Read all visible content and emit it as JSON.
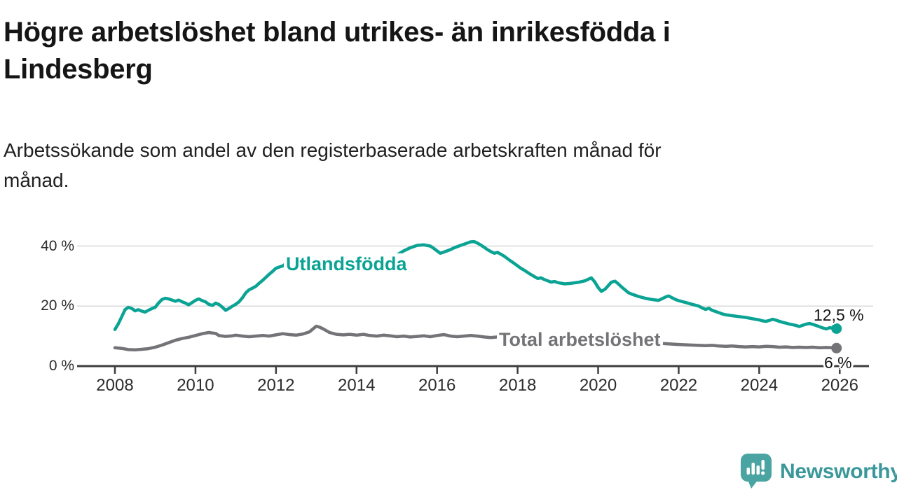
{
  "header": {
    "title_line1": "Högre arbetslöshet bland utrikes- än inrikesfödda i",
    "title_line2": "Lindesberg",
    "subtitle_line1": "Arbetssökande som andel av den registerbaserade arbetskraften månad för",
    "subtitle_line2": "månad."
  },
  "chart_data": {
    "type": "line",
    "unit": "%",
    "grid": "horizontal",
    "legend": "inline-labels",
    "y_axis": {
      "range": [
        0,
        43
      ],
      "ticks": [
        {
          "value": 0,
          "label": "0 %"
        },
        {
          "value": 20,
          "label": "20 %"
        },
        {
          "value": 40,
          "label": "40 %"
        }
      ]
    },
    "x_axis": {
      "range": [
        2007.05,
        2026.8
      ],
      "ticks": [
        2008,
        2010,
        2012,
        2014,
        2016,
        2018,
        2020,
        2022,
        2024,
        2026
      ]
    },
    "series": [
      {
        "name": "Utlandsfödda",
        "color": "#0aa394",
        "end_label": "12,5 %",
        "end_value": 12.5,
        "points": [
          [
            2008.0,
            12.2
          ],
          [
            2008.08,
            14.0
          ],
          [
            2008.17,
            16.5
          ],
          [
            2008.25,
            18.8
          ],
          [
            2008.33,
            19.6
          ],
          [
            2008.42,
            19.2
          ],
          [
            2008.5,
            18.4
          ],
          [
            2008.58,
            18.8
          ],
          [
            2008.67,
            18.3
          ],
          [
            2008.75,
            18.0
          ],
          [
            2008.83,
            18.6
          ],
          [
            2008.92,
            19.2
          ],
          [
            2009.0,
            19.6
          ],
          [
            2009.08,
            21.0
          ],
          [
            2009.17,
            22.2
          ],
          [
            2009.25,
            22.6
          ],
          [
            2009.33,
            22.4
          ],
          [
            2009.42,
            22.0
          ],
          [
            2009.5,
            21.6
          ],
          [
            2009.58,
            22.0
          ],
          [
            2009.67,
            21.4
          ],
          [
            2009.75,
            21.0
          ],
          [
            2009.83,
            20.4
          ],
          [
            2009.92,
            21.2
          ],
          [
            2010.0,
            21.9
          ],
          [
            2010.08,
            22.4
          ],
          [
            2010.17,
            21.8
          ],
          [
            2010.25,
            21.4
          ],
          [
            2010.33,
            20.6
          ],
          [
            2010.42,
            20.2
          ],
          [
            2010.5,
            21.0
          ],
          [
            2010.58,
            20.6
          ],
          [
            2010.67,
            19.6
          ],
          [
            2010.75,
            18.6
          ],
          [
            2010.83,
            19.2
          ],
          [
            2010.92,
            20.0
          ],
          [
            2011.0,
            20.6
          ],
          [
            2011.08,
            21.4
          ],
          [
            2011.17,
            22.8
          ],
          [
            2011.25,
            24.4
          ],
          [
            2011.33,
            25.4
          ],
          [
            2011.42,
            26.0
          ],
          [
            2011.5,
            26.6
          ],
          [
            2011.58,
            27.6
          ],
          [
            2011.67,
            28.6
          ],
          [
            2011.75,
            29.6
          ],
          [
            2011.83,
            30.6
          ],
          [
            2011.92,
            31.6
          ],
          [
            2012.0,
            32.6
          ],
          [
            2012.08,
            33.0
          ],
          [
            2012.17,
            33.4
          ],
          [
            2012.25,
            34.2
          ],
          [
            2012.33,
            33.6
          ],
          [
            2012.42,
            33.0
          ],
          [
            2012.5,
            32.8
          ],
          [
            2012.58,
            32.2
          ],
          [
            2012.67,
            32.0
          ],
          [
            2012.83,
            31.8
          ],
          [
            2013.0,
            32.0
          ],
          [
            2013.25,
            32.4
          ],
          [
            2013.5,
            32.0
          ],
          [
            2013.75,
            32.6
          ],
          [
            2014.0,
            33.0
          ],
          [
            2014.25,
            33.6
          ],
          [
            2014.5,
            34.4
          ],
          [
            2014.75,
            35.6
          ],
          [
            2015.0,
            37.0
          ],
          [
            2015.17,
            38.4
          ],
          [
            2015.33,
            39.4
          ],
          [
            2015.5,
            40.2
          ],
          [
            2015.67,
            40.4
          ],
          [
            2015.83,
            40.0
          ],
          [
            2015.92,
            39.2
          ],
          [
            2016.0,
            38.4
          ],
          [
            2016.08,
            37.6
          ],
          [
            2016.17,
            38.0
          ],
          [
            2016.25,
            38.4
          ],
          [
            2016.33,
            38.8
          ],
          [
            2016.42,
            39.4
          ],
          [
            2016.5,
            39.8
          ],
          [
            2016.58,
            40.2
          ],
          [
            2016.67,
            40.6
          ],
          [
            2016.75,
            41.0
          ],
          [
            2016.83,
            41.4
          ],
          [
            2016.92,
            41.5
          ],
          [
            2017.0,
            41.0
          ],
          [
            2017.08,
            40.4
          ],
          [
            2017.17,
            39.6
          ],
          [
            2017.25,
            38.8
          ],
          [
            2017.33,
            38.2
          ],
          [
            2017.42,
            37.6
          ],
          [
            2017.5,
            37.9
          ],
          [
            2017.58,
            37.3
          ],
          [
            2017.67,
            36.6
          ],
          [
            2017.75,
            35.8
          ],
          [
            2017.83,
            35.0
          ],
          [
            2017.92,
            34.2
          ],
          [
            2018.0,
            33.4
          ],
          [
            2018.08,
            32.6
          ],
          [
            2018.17,
            31.9
          ],
          [
            2018.25,
            31.2
          ],
          [
            2018.33,
            30.5
          ],
          [
            2018.42,
            29.8
          ],
          [
            2018.5,
            29.2
          ],
          [
            2018.58,
            29.4
          ],
          [
            2018.67,
            28.8
          ],
          [
            2018.75,
            28.4
          ],
          [
            2018.83,
            28.0
          ],
          [
            2018.92,
            28.2
          ],
          [
            2019.0,
            27.8
          ],
          [
            2019.17,
            27.4
          ],
          [
            2019.33,
            27.6
          ],
          [
            2019.5,
            27.9
          ],
          [
            2019.67,
            28.4
          ],
          [
            2019.83,
            29.4
          ],
          [
            2019.92,
            28.0
          ],
          [
            2020.0,
            26.2
          ],
          [
            2020.08,
            24.9
          ],
          [
            2020.17,
            25.6
          ],
          [
            2020.25,
            26.8
          ],
          [
            2020.33,
            28.0
          ],
          [
            2020.42,
            28.3
          ],
          [
            2020.5,
            27.4
          ],
          [
            2020.58,
            26.4
          ],
          [
            2020.67,
            25.4
          ],
          [
            2020.75,
            24.5
          ],
          [
            2020.83,
            24.0
          ],
          [
            2020.92,
            23.6
          ],
          [
            2021.0,
            23.2
          ],
          [
            2021.17,
            22.6
          ],
          [
            2021.33,
            22.2
          ],
          [
            2021.5,
            21.9
          ],
          [
            2021.58,
            22.4
          ],
          [
            2021.67,
            23.0
          ],
          [
            2021.75,
            23.4
          ],
          [
            2021.83,
            22.8
          ],
          [
            2021.92,
            22.2
          ],
          [
            2022.0,
            21.8
          ],
          [
            2022.17,
            21.2
          ],
          [
            2022.33,
            20.6
          ],
          [
            2022.5,
            20.0
          ],
          [
            2022.58,
            19.4
          ],
          [
            2022.67,
            18.9
          ],
          [
            2022.75,
            19.3
          ],
          [
            2022.83,
            18.6
          ],
          [
            2022.92,
            18.2
          ],
          [
            2023.0,
            17.8
          ],
          [
            2023.08,
            17.4
          ],
          [
            2023.17,
            17.1
          ],
          [
            2023.33,
            16.8
          ],
          [
            2023.5,
            16.5
          ],
          [
            2023.67,
            16.2
          ],
          [
            2023.83,
            15.8
          ],
          [
            2024.0,
            15.4
          ],
          [
            2024.08,
            15.1
          ],
          [
            2024.17,
            14.9
          ],
          [
            2024.25,
            15.2
          ],
          [
            2024.33,
            15.6
          ],
          [
            2024.42,
            15.3
          ],
          [
            2024.5,
            14.9
          ],
          [
            2024.58,
            14.6
          ],
          [
            2024.67,
            14.3
          ],
          [
            2024.75,
            14.0
          ],
          [
            2024.83,
            13.8
          ],
          [
            2024.92,
            13.5
          ],
          [
            2025.0,
            13.2
          ],
          [
            2025.08,
            13.6
          ],
          [
            2025.17,
            14.0
          ],
          [
            2025.25,
            14.2
          ],
          [
            2025.33,
            13.9
          ],
          [
            2025.42,
            13.5
          ],
          [
            2025.5,
            13.1
          ],
          [
            2025.58,
            12.7
          ],
          [
            2025.67,
            12.4
          ],
          [
            2025.75,
            12.8
          ],
          [
            2025.83,
            12.6
          ],
          [
            2025.92,
            12.5
          ]
        ]
      },
      {
        "name": "Total arbetslöshet",
        "color": "#747478",
        "end_label": "6 %",
        "end_value": 6.0,
        "points": [
          [
            2008.0,
            6.1
          ],
          [
            2008.17,
            5.9
          ],
          [
            2008.33,
            5.5
          ],
          [
            2008.5,
            5.4
          ],
          [
            2008.67,
            5.6
          ],
          [
            2008.83,
            5.8
          ],
          [
            2009.0,
            6.3
          ],
          [
            2009.17,
            7.0
          ],
          [
            2009.33,
            7.8
          ],
          [
            2009.5,
            8.6
          ],
          [
            2009.67,
            9.2
          ],
          [
            2009.83,
            9.6
          ],
          [
            2010.0,
            10.2
          ],
          [
            2010.17,
            10.8
          ],
          [
            2010.33,
            11.2
          ],
          [
            2010.5,
            10.9
          ],
          [
            2010.58,
            10.2
          ],
          [
            2010.75,
            9.9
          ],
          [
            2010.92,
            10.1
          ],
          [
            2011.0,
            10.3
          ],
          [
            2011.17,
            10.0
          ],
          [
            2011.33,
            9.8
          ],
          [
            2011.5,
            10.0
          ],
          [
            2011.67,
            10.2
          ],
          [
            2011.83,
            10.0
          ],
          [
            2012.0,
            10.4
          ],
          [
            2012.17,
            10.8
          ],
          [
            2012.33,
            10.5
          ],
          [
            2012.5,
            10.3
          ],
          [
            2012.67,
            10.7
          ],
          [
            2012.83,
            11.4
          ],
          [
            2013.0,
            13.3
          ],
          [
            2013.08,
            13.0
          ],
          [
            2013.17,
            12.4
          ],
          [
            2013.25,
            11.8
          ],
          [
            2013.33,
            11.2
          ],
          [
            2013.5,
            10.6
          ],
          [
            2013.67,
            10.4
          ],
          [
            2013.83,
            10.6
          ],
          [
            2014.0,
            10.3
          ],
          [
            2014.17,
            10.6
          ],
          [
            2014.33,
            10.2
          ],
          [
            2014.5,
            10.0
          ],
          [
            2014.67,
            10.3
          ],
          [
            2014.83,
            10.1
          ],
          [
            2015.0,
            9.8
          ],
          [
            2015.17,
            10.0
          ],
          [
            2015.33,
            9.7
          ],
          [
            2015.5,
            9.9
          ],
          [
            2015.67,
            10.1
          ],
          [
            2015.83,
            9.8
          ],
          [
            2016.0,
            10.2
          ],
          [
            2016.17,
            10.5
          ],
          [
            2016.33,
            10.0
          ],
          [
            2016.5,
            9.8
          ],
          [
            2016.67,
            10.0
          ],
          [
            2016.83,
            10.2
          ],
          [
            2017.0,
            10.0
          ],
          [
            2017.17,
            9.7
          ],
          [
            2017.33,
            9.5
          ],
          [
            2017.5,
            9.7
          ],
          [
            2017.75,
            9.4
          ],
          [
            2018.0,
            9.2
          ],
          [
            2018.5,
            8.8
          ],
          [
            2019.0,
            8.4
          ],
          [
            2019.5,
            8.2
          ],
          [
            2020.0,
            8.6
          ],
          [
            2020.42,
            9.4
          ],
          [
            2020.75,
            8.8
          ],
          [
            2021.0,
            8.2
          ],
          [
            2021.5,
            7.6
          ],
          [
            2022.0,
            7.2
          ],
          [
            2022.33,
            7.0
          ],
          [
            2022.5,
            6.9
          ],
          [
            2022.67,
            6.8
          ],
          [
            2022.83,
            6.9
          ],
          [
            2023.0,
            6.7
          ],
          [
            2023.17,
            6.6
          ],
          [
            2023.33,
            6.7
          ],
          [
            2023.5,
            6.5
          ],
          [
            2023.67,
            6.4
          ],
          [
            2023.83,
            6.5
          ],
          [
            2024.0,
            6.4
          ],
          [
            2024.17,
            6.6
          ],
          [
            2024.33,
            6.5
          ],
          [
            2024.5,
            6.3
          ],
          [
            2024.67,
            6.4
          ],
          [
            2024.83,
            6.2
          ],
          [
            2025.0,
            6.3
          ],
          [
            2025.17,
            6.2
          ],
          [
            2025.33,
            6.3
          ],
          [
            2025.5,
            6.1
          ],
          [
            2025.67,
            6.2
          ],
          [
            2025.83,
            6.1
          ],
          [
            2025.92,
            6.0
          ]
        ]
      }
    ]
  },
  "footer": {
    "brand": "Newsworthy",
    "logo_icon": "speech-bubble-bar-chart-icon"
  },
  "colors": {
    "accent_teal": "#0aa394",
    "series_gray": "#747478",
    "gridline": "#d8d8d8",
    "axis": "#3d3d3d",
    "logo_bubble": "#4aa5a2",
    "logo_text": "#3a989a"
  }
}
